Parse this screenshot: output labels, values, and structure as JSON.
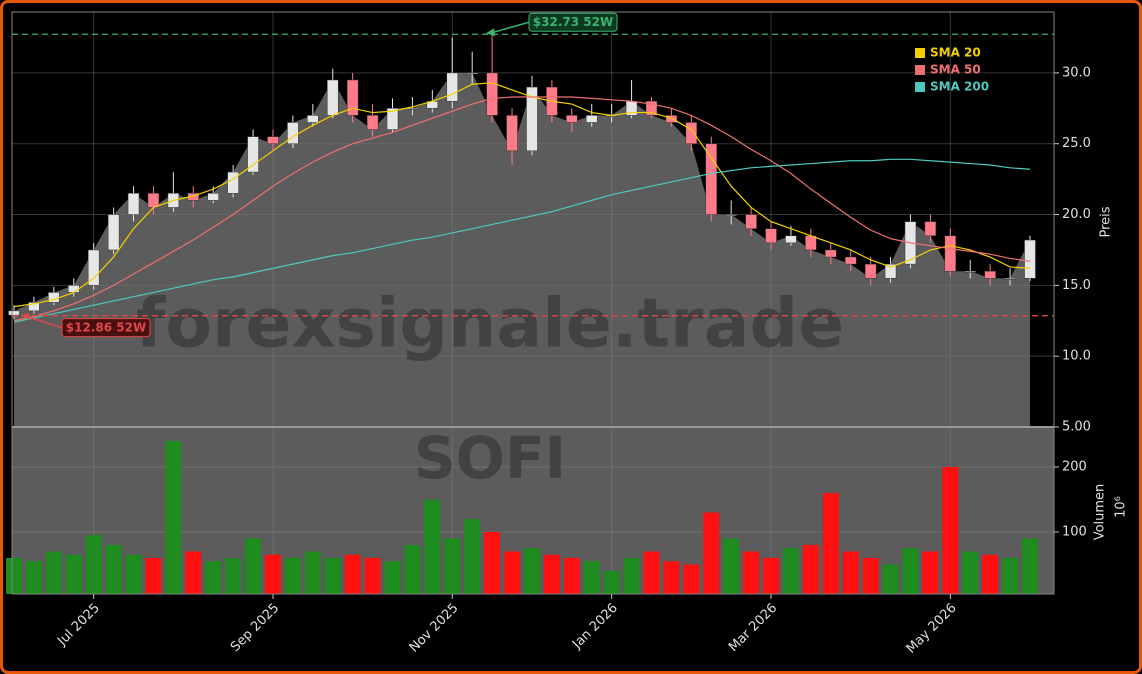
{
  "chart_data": {
    "type": "candlestick",
    "categories": [
      null,
      null,
      null,
      null,
      "Jul 2025",
      null,
      null,
      null,
      null,
      null,
      null,
      null,
      null,
      "Sep 2025",
      null,
      null,
      null,
      null,
      null,
      null,
      null,
      null,
      "Nov 2025",
      null,
      null,
      null,
      null,
      null,
      null,
      null,
      "Jan 2026",
      null,
      null,
      null,
      null,
      null,
      null,
      null,
      "Mar 2026",
      null,
      null,
      null,
      null,
      null,
      null,
      null,
      null,
      "May 2026",
      null,
      null,
      null,
      null
    ],
    "open": [
      12.9,
      13.2,
      13.8,
      14.5,
      15.0,
      17.5,
      20.0,
      21.5,
      20.5,
      21.5,
      21.0,
      21.5,
      23.0,
      25.5,
      25.0,
      26.5,
      27.0,
      29.5,
      27.0,
      26.0,
      27.5,
      27.5,
      28.0,
      30.0,
      30.0,
      27.0,
      24.5,
      29.0,
      27.0,
      26.5,
      27.0,
      27.0,
      28.0,
      27.0,
      26.5,
      25.0,
      20.0,
      20.0,
      19.0,
      18.0,
      18.5,
      17.5,
      17.0,
      16.5,
      15.5,
      16.5,
      19.5,
      18.5,
      16.0,
      16.0,
      15.5,
      15.5
    ],
    "high": [
      13.6,
      14.2,
      14.9,
      15.5,
      18.0,
      20.5,
      22.0,
      22.0,
      23.0,
      22.0,
      22.0,
      23.5,
      26.0,
      26.0,
      27.0,
      27.8,
      30.3,
      30.0,
      27.8,
      28.2,
      28.3,
      28.8,
      32.5,
      31.5,
      32.7,
      27.5,
      29.8,
      29.5,
      27.5,
      27.8,
      27.8,
      29.5,
      28.3,
      27.5,
      27.0,
      25.5,
      21.0,
      20.5,
      19.5,
      19.2,
      19.0,
      18.0,
      17.5,
      17.0,
      17.0,
      20.0,
      20.0,
      19.0,
      16.8,
      16.5,
      16.2,
      18.5
    ],
    "low": [
      12.6,
      13.0,
      13.6,
      14.2,
      14.7,
      17.2,
      19.5,
      20.0,
      20.2,
      20.5,
      20.8,
      21.2,
      22.8,
      24.5,
      24.7,
      26.2,
      26.8,
      26.5,
      25.5,
      25.8,
      27.0,
      27.2,
      27.5,
      29.2,
      26.5,
      23.5,
      24.2,
      26.5,
      25.8,
      26.2,
      26.5,
      26.8,
      26.8,
      26.2,
      24.5,
      19.5,
      19.3,
      18.5,
      17.5,
      17.8,
      17.0,
      16.5,
      16.0,
      15.0,
      15.2,
      16.2,
      18.0,
      15.7,
      15.5,
      15.0,
      15.0,
      15.3
    ],
    "close": [
      13.2,
      13.8,
      14.5,
      15.0,
      17.5,
      20.0,
      21.5,
      20.5,
      21.5,
      21.0,
      21.5,
      23.0,
      25.5,
      25.0,
      26.5,
      27.0,
      29.5,
      27.0,
      26.0,
      27.5,
      27.5,
      28.0,
      30.0,
      30.0,
      27.0,
      24.5,
      29.0,
      27.0,
      26.5,
      27.0,
      27.0,
      28.0,
      27.0,
      26.5,
      25.0,
      20.0,
      20.0,
      19.0,
      18.0,
      18.5,
      17.5,
      17.0,
      16.5,
      15.5,
      16.5,
      19.5,
      18.5,
      16.0,
      16.0,
      15.5,
      15.5,
      18.2
    ],
    "up_color": "#e6e6e6",
    "down_color": "#ff7b8a",
    "area_color": "#5c5c5c",
    "series": [
      {
        "name": "SMA 20",
        "color": "#f5d000",
        "values": [
          13.5,
          13.7,
          14,
          14.5,
          15.5,
          17,
          19,
          20.5,
          21,
          21.3,
          21.8,
          22.5,
          23.5,
          24.5,
          25.5,
          26.3,
          27,
          27.5,
          27.2,
          27.3,
          27.6,
          28,
          28.5,
          29.2,
          29.3,
          28.8,
          28.3,
          28,
          27.8,
          27.2,
          27,
          27.2,
          27.2,
          26.8,
          26,
          24,
          22,
          20.5,
          19.5,
          19,
          18.5,
          18,
          17.5,
          16.8,
          16.3,
          16.8,
          17.5,
          17.8,
          17.5,
          17,
          16.3,
          16.2
        ]
      },
      {
        "name": "SMA 50",
        "color": "#f07070",
        "values": [
          12.5,
          12.8,
          13.2,
          13.7,
          14.3,
          15,
          15.8,
          16.6,
          17.4,
          18.2,
          19.1,
          20,
          21,
          22,
          22.9,
          23.7,
          24.4,
          25,
          25.4,
          25.8,
          26.3,
          26.8,
          27.3,
          27.8,
          28.2,
          28.3,
          28.3,
          28.3,
          28.3,
          28.2,
          28.1,
          28,
          27.8,
          27.5,
          27,
          26.3,
          25.5,
          24.6,
          23.8,
          22.9,
          21.8,
          20.8,
          19.8,
          18.9,
          18.3,
          18,
          17.8,
          17.6,
          17.4,
          17.2,
          16.9,
          16.7
        ]
      },
      {
        "name": "SMA 200",
        "color": "#4fc9c0",
        "values": [
          12.4,
          12.7,
          13.0,
          13.3,
          13.6,
          13.9,
          14.2,
          14.5,
          14.8,
          15.1,
          15.4,
          15.6,
          15.9,
          16.2,
          16.5,
          16.8,
          17.1,
          17.3,
          17.6,
          17.9,
          18.2,
          18.4,
          18.7,
          19.0,
          19.3,
          19.6,
          19.9,
          20.2,
          20.6,
          21.0,
          21.4,
          21.7,
          22.0,
          22.3,
          22.6,
          22.9,
          23.1,
          23.3,
          23.4,
          23.5,
          23.6,
          23.7,
          23.8,
          23.8,
          23.9,
          23.9,
          23.8,
          23.7,
          23.6,
          23.5,
          23.3,
          23.2
        ]
      }
    ],
    "ylim": [
      5,
      34.3
    ],
    "yticks": [
      {
        "value": 5,
        "label": "5.00"
      },
      {
        "value": 10,
        "label": "10.0"
      },
      {
        "value": 15,
        "label": "15.0"
      },
      {
        "value": 20,
        "label": "20.0"
      },
      {
        "value": 25,
        "label": "25.0"
      },
      {
        "value": 30,
        "label": "30.0"
      }
    ],
    "ylabel": "Preis",
    "grid": true,
    "legend": "upper right",
    "annotations": [
      {
        "text": "$32.73 52W",
        "value": 32.73,
        "color": "#3cb371"
      },
      {
        "text": "$12.86 52W",
        "value": 12.86,
        "color": "#e04848"
      }
    ],
    "watermarks": [
      "forexsignale.trade",
      "SOFI"
    ],
    "volume": {
      "values": [
        60,
        55,
        70,
        65,
        95,
        80,
        65,
        60,
        240,
        70,
        55,
        60,
        90,
        65,
        60,
        70,
        60,
        65,
        60,
        55,
        80,
        150,
        90,
        120,
        100,
        70,
        75,
        65,
        60,
        55,
        40,
        60,
        70,
        55,
        50,
        130,
        90,
        70,
        60,
        75,
        80,
        160,
        70,
        60,
        50,
        75,
        70,
        200,
        70,
        65,
        60,
        90
      ],
      "up_color": "#1e8c1e",
      "down_color": "#ff1010",
      "ylim": [
        4.6,
        261.5
      ],
      "yticks": [
        100,
        200
      ],
      "ylabel": "Volumen",
      "offset": "10⁶"
    }
  }
}
